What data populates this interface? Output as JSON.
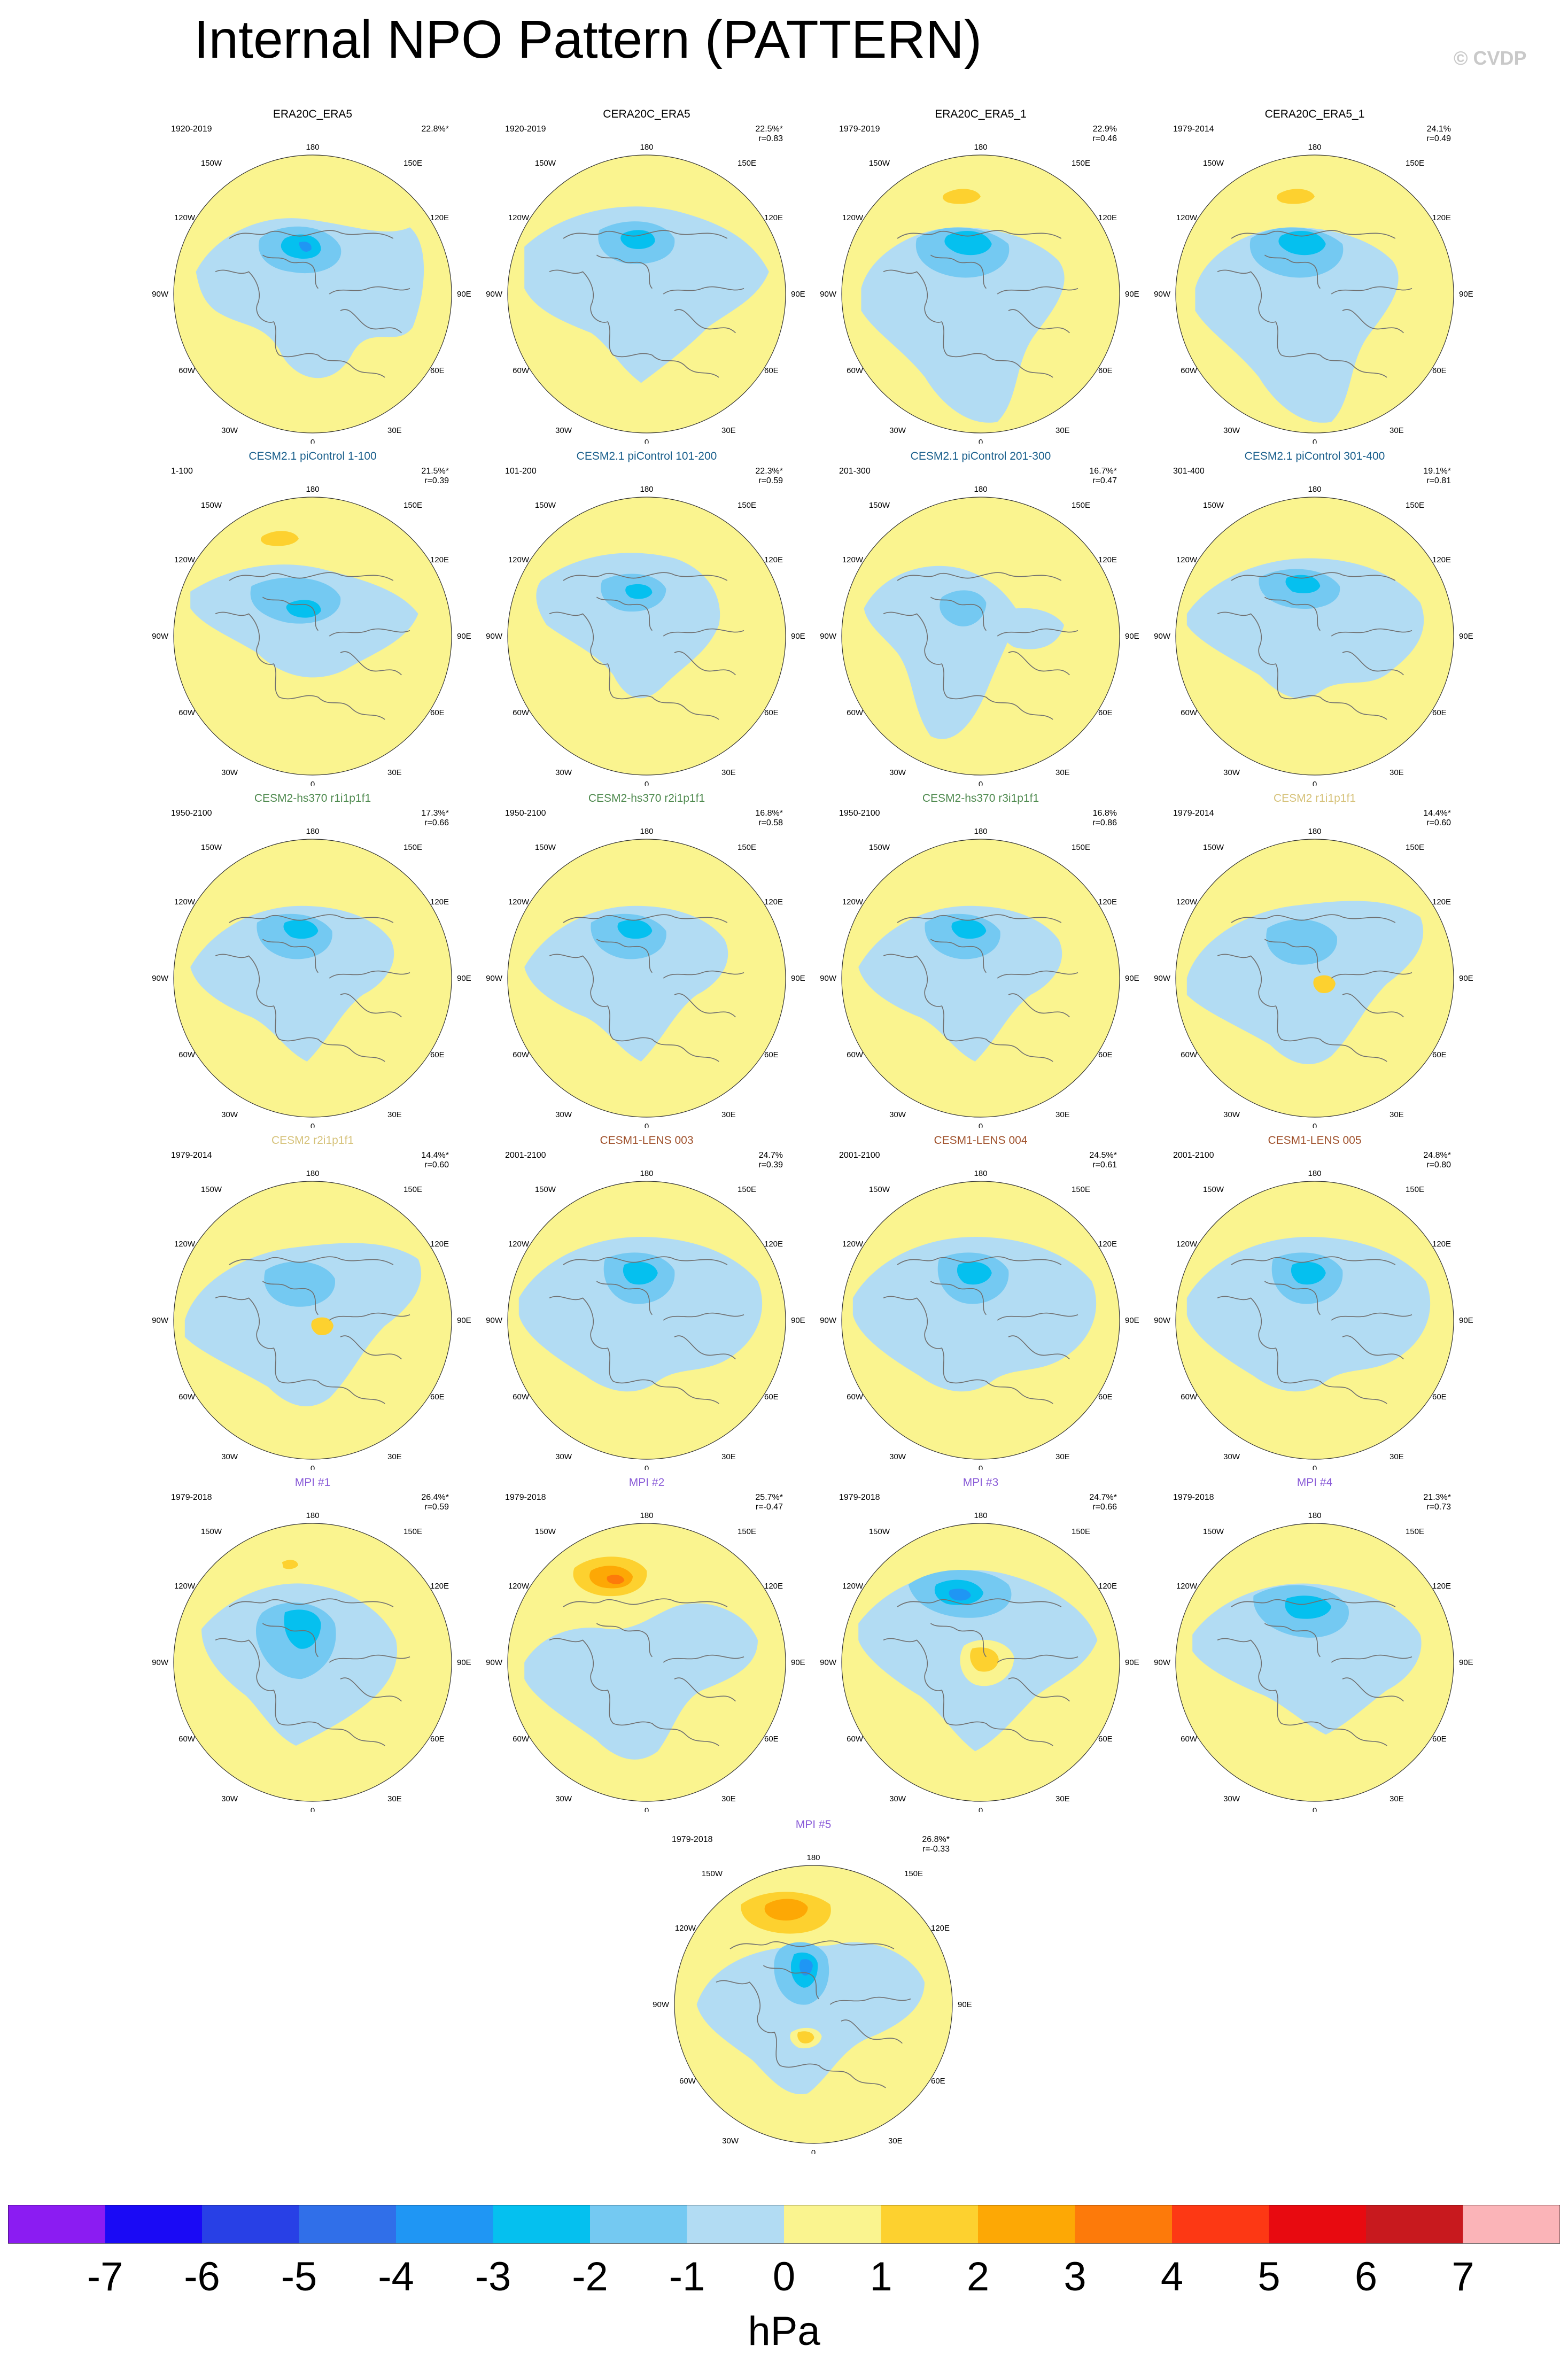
{
  "title": "Internal NPO Pattern (PATTERN)",
  "copyright": "© CVDP",
  "map_labels": {
    "top": "180",
    "bottom": "0",
    "lon_150w": "150W",
    "lon_150e": "150E",
    "lon_120w": "120W",
    "lon_120e": "120E",
    "lon_90w": "90W",
    "lon_90e": "90E",
    "lon_60w": "60W",
    "lon_60e": "60E",
    "lon_30w": "30W",
    "lon_30e": "30E"
  },
  "chart_data": {
    "type": "heatmap",
    "projection": "north polar stereographic",
    "colorbar": {
      "unit": "hPa",
      "ticks": [
        "-7",
        "-6",
        "-5",
        "-4",
        "-3",
        "-2",
        "-1",
        "0",
        "1",
        "2",
        "3",
        "4",
        "5",
        "6",
        "7"
      ],
      "colors": [
        "#8b1cf2",
        "#1a0af5",
        "#2840e6",
        "#306fe9",
        "#1f96f4",
        "#05c0ef",
        "#74c9f2",
        "#b2dcf3",
        "#faf48f",
        "#fdd12f",
        "#fda805",
        "#fd7a0a",
        "#fd3814",
        "#e80a10",
        "#c8191e",
        "#fbb4b8"
      ]
    },
    "panels": [
      {
        "title": "ERA20C_ERA5",
        "title_color": "#000000",
        "period": "1920-2019",
        "pct": "22.8%*",
        "r": "",
        "pattern": "era1"
      },
      {
        "title": "CERA20C_ERA5",
        "title_color": "#000000",
        "period": "1920-2019",
        "pct": "22.5%*",
        "r": "r=0.83",
        "pattern": "era2"
      },
      {
        "title": "ERA20C_ERA5_1",
        "title_color": "#000000",
        "period": "1979-2019",
        "pct": "22.9%",
        "r": "r=0.46",
        "pattern": "era3"
      },
      {
        "title": "CERA20C_ERA5_1",
        "title_color": "#000000",
        "period": "1979-2014",
        "pct": "24.1%",
        "r": "r=0.49",
        "pattern": "era3"
      },
      {
        "title": "CESM2.1 piControl 1-100",
        "title_color": "#1a5f8c",
        "period": "1-100",
        "pct": "21.5%*",
        "r": "r=0.39",
        "pattern": "pi1"
      },
      {
        "title": "CESM2.1 piControl 101-200",
        "title_color": "#1a5f8c",
        "period": "101-200",
        "pct": "22.3%*",
        "r": "r=0.59",
        "pattern": "pi2"
      },
      {
        "title": "CESM2.1 piControl 201-300",
        "title_color": "#1a5f8c",
        "period": "201-300",
        "pct": "16.7%*",
        "r": "r=0.47",
        "pattern": "pi3"
      },
      {
        "title": "CESM2.1 piControl 301-400",
        "title_color": "#1a5f8c",
        "period": "301-400",
        "pct": "19.1%*",
        "r": "r=0.81",
        "pattern": "pi4"
      },
      {
        "title": "CESM2-hs370 r1i1p1f1",
        "title_color": "#4f8a4f",
        "period": "1950-2100",
        "pct": "17.3%*",
        "r": "r=0.66",
        "pattern": "hs"
      },
      {
        "title": "CESM2-hs370 r2i1p1f1",
        "title_color": "#4f8a4f",
        "period": "1950-2100",
        "pct": "16.8%*",
        "r": "r=0.58",
        "pattern": "hs"
      },
      {
        "title": "CESM2-hs370 r3i1p1f1",
        "title_color": "#4f8a4f",
        "period": "1950-2100",
        "pct": "16.8%",
        "r": "r=0.86",
        "pattern": "hs"
      },
      {
        "title": "CESM2 r1i1p1f1",
        "title_color": "#d6c27a",
        "period": "1979-2014",
        "pct": "14.4%*",
        "r": "r=0.60",
        "pattern": "c2"
      },
      {
        "title": "CESM2 r2i1p1f1",
        "title_color": "#d6c27a",
        "period": "1979-2014",
        "pct": "14.4%*",
        "r": "r=0.60",
        "pattern": "c2"
      },
      {
        "title": "CESM1-LENS 003",
        "title_color": "#a0522d",
        "period": "2001-2100",
        "pct": "24.7%",
        "r": "r=0.39",
        "pattern": "lens"
      },
      {
        "title": "CESM1-LENS 004",
        "title_color": "#a0522d",
        "period": "2001-2100",
        "pct": "24.5%*",
        "r": "r=0.61",
        "pattern": "lens"
      },
      {
        "title": "CESM1-LENS 005",
        "title_color": "#a0522d",
        "period": "2001-2100",
        "pct": "24.8%*",
        "r": "r=0.80",
        "pattern": "lens"
      },
      {
        "title": "MPI #1",
        "title_color": "#8a5cd8",
        "period": "1979-2018",
        "pct": "26.4%*",
        "r": "r=0.59",
        "pattern": "mpi1"
      },
      {
        "title": "MPI #2",
        "title_color": "#8a5cd8",
        "period": "1979-2018",
        "pct": "25.7%*",
        "r": "r=-0.47",
        "pattern": "mpi2"
      },
      {
        "title": "MPI #3",
        "title_color": "#8a5cd8",
        "period": "1979-2018",
        "pct": "24.7%*",
        "r": "r=0.66",
        "pattern": "mpi3"
      },
      {
        "title": "MPI #4",
        "title_color": "#8a5cd8",
        "period": "1979-2018",
        "pct": "21.3%*",
        "r": "r=0.73",
        "pattern": "mpi4"
      },
      {
        "title": "MPI #5",
        "title_color": "#8a5cd8",
        "period": "1979-2018",
        "pct": "26.8%*",
        "r": "r=-0.33",
        "pattern": "mpi5"
      }
    ]
  }
}
